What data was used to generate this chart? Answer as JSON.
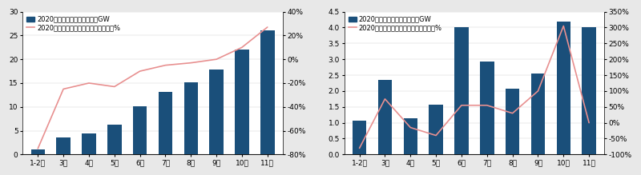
{
  "chart1": {
    "categories": [
      "1-2月",
      "3月",
      "4月",
      "5月",
      "6月",
      "7月",
      "8月",
      "9月",
      "10月",
      "11月"
    ],
    "bar_values": [
      1.1,
      3.5,
      4.5,
      6.2,
      10.2,
      13.2,
      15.1,
      17.8,
      22.0,
      26.0
    ],
    "line_values": [
      -75,
      -25,
      -20,
      -23,
      -10,
      -5,
      -3,
      0,
      10,
      27
    ],
    "bar_color": "#1a4f7a",
    "line_color": "#e89090",
    "ylim_left": [
      0,
      30
    ],
    "ylim_right": [
      -80,
      40
    ],
    "yticks_left": [
      0,
      5,
      10,
      15,
      20,
      25,
      30
    ],
    "yticks_right": [
      -80,
      -60,
      -40,
      -20,
      0,
      20,
      40
    ],
    "ytick_labels_right": [
      "-80%",
      "-60%",
      "-40%",
      "-20%",
      "0%",
      "20%",
      "40%"
    ],
    "legend1": "2020年光伏新增累计装机量，GW",
    "legend2": "2020年光伏新增累计装机量同比增速，%"
  },
  "chart2": {
    "categories": [
      "1-2月",
      "3月",
      "4月",
      "5月",
      "6月",
      "7月",
      "8月",
      "9月",
      "10月",
      "11月"
    ],
    "bar_values": [
      1.07,
      2.35,
      1.13,
      1.57,
      4.0,
      2.93,
      2.07,
      2.55,
      4.18,
      4.0
    ],
    "line_values": [
      -80,
      75,
      -15,
      -40,
      55,
      55,
      30,
      100,
      305,
      0
    ],
    "bar_color": "#1a4f7a",
    "line_color": "#e89090",
    "ylim_left": [
      0,
      4.5
    ],
    "ylim_right": [
      -100,
      350
    ],
    "yticks_left": [
      0,
      0.5,
      1.0,
      1.5,
      2.0,
      2.5,
      3.0,
      3.5,
      4.0,
      4.5
    ],
    "yticks_right": [
      -100,
      -50,
      0,
      50,
      100,
      150,
      200,
      250,
      300,
      350
    ],
    "ytick_labels_right": [
      "-100%",
      "-50%",
      "0%",
      "50%",
      "100%",
      "150%",
      "200%",
      "250%",
      "300%",
      "350%"
    ],
    "legend1": "2020年光伏每月新增装机量，GW",
    "legend2": "2020年光伏每月新增装机量同比增速，%"
  },
  "bg_color": "#ffffff",
  "outer_bg": "#e8e8e8",
  "font_size": 6.5,
  "legend_font_size": 6.0,
  "bar_width": 0.55
}
